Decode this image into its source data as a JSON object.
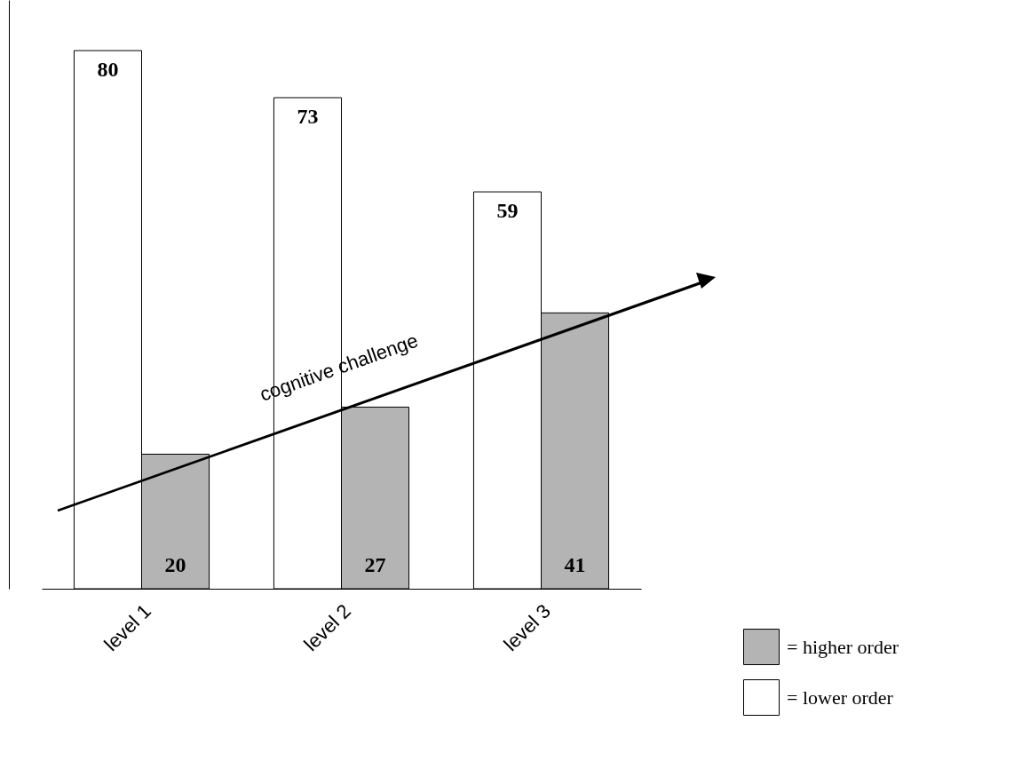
{
  "chart_data": {
    "type": "bar",
    "categories": [
      "level 1",
      "level 2",
      "level 3"
    ],
    "series": [
      {
        "name": "= lower order",
        "color": "#ffffff",
        "values": [
          80,
          73,
          59
        ]
      },
      {
        "name": "= higher order",
        "color": "#b4b4b4",
        "values": [
          20,
          27,
          41
        ]
      }
    ],
    "data_labels": true,
    "legend": "bottom right",
    "grid": false,
    "tick_labels": "x",
    "annotations": [
      "cognitive challenge"
    ]
  }
}
